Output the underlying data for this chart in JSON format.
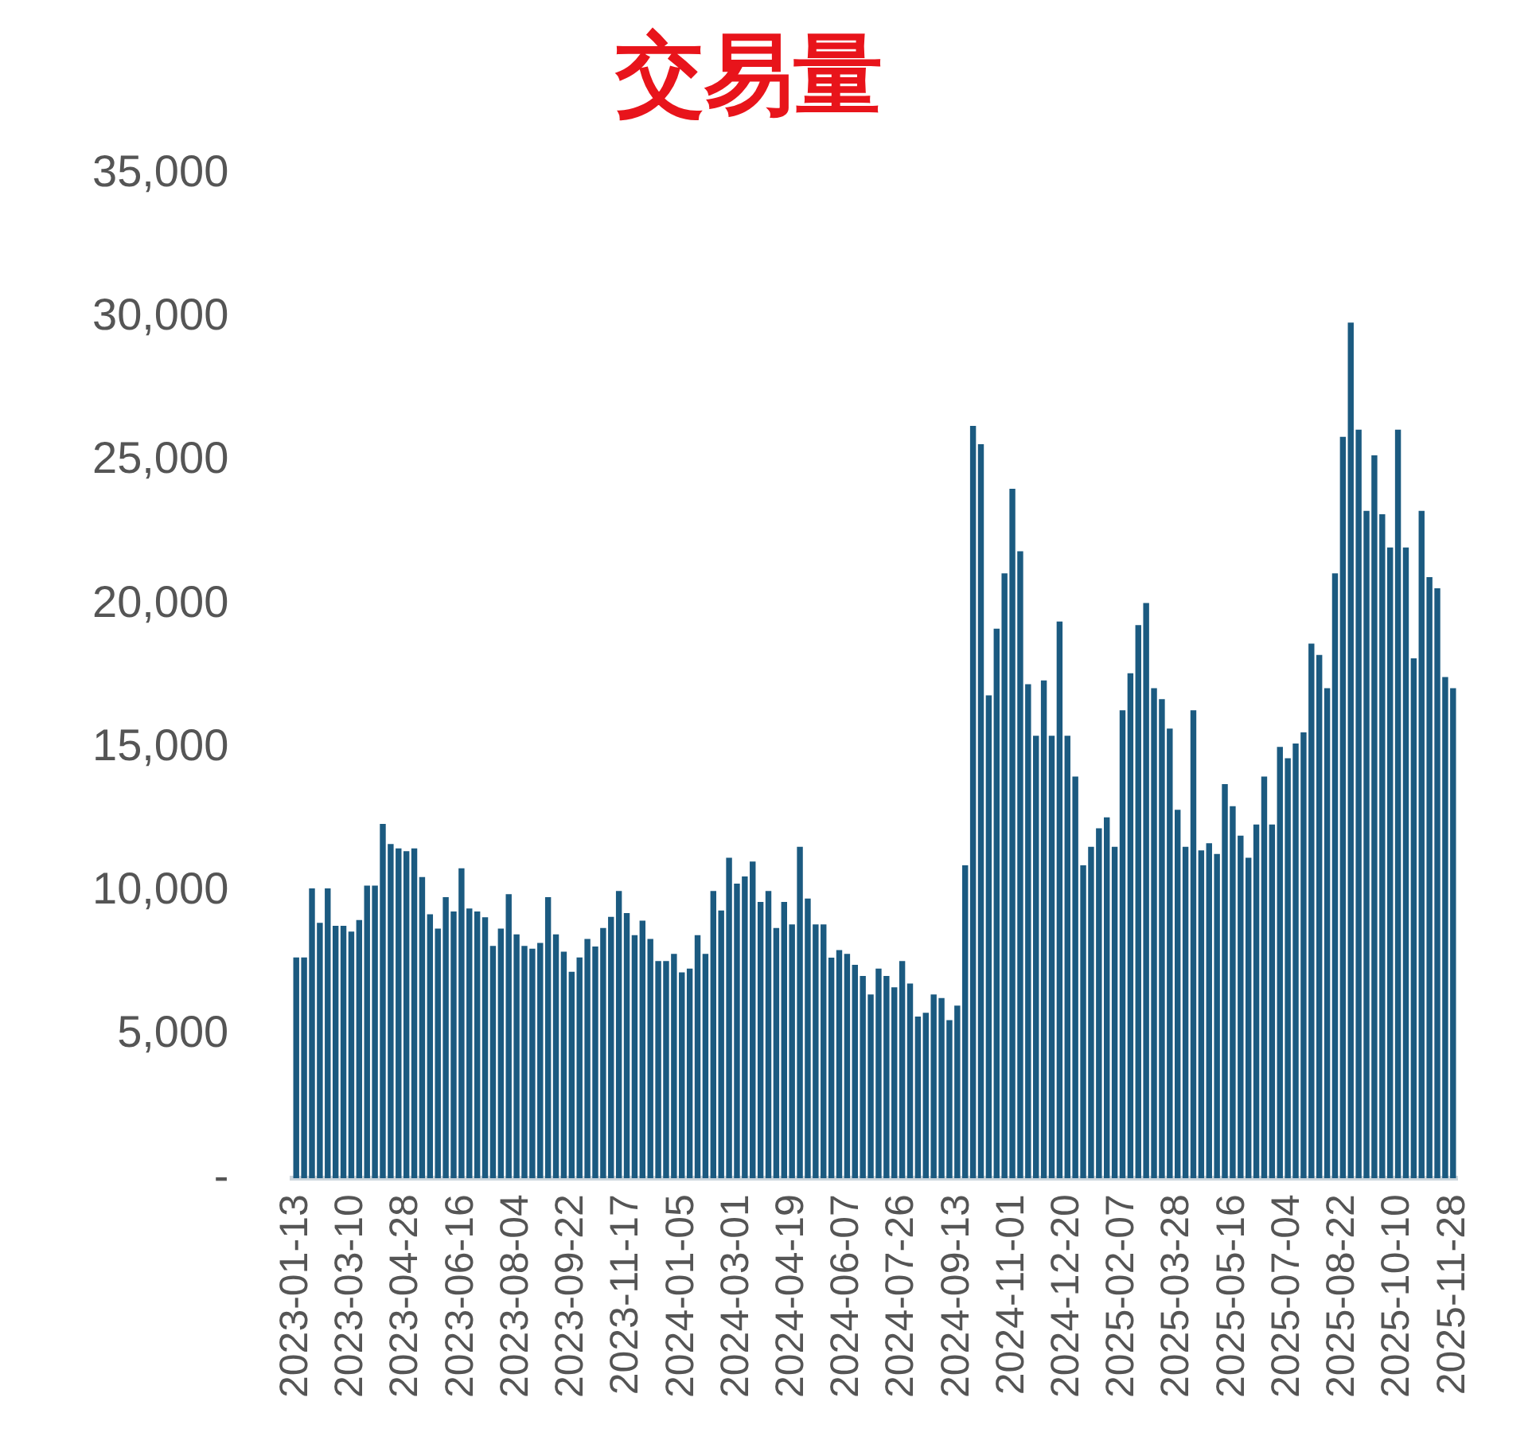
{
  "chart_data": {
    "type": "bar",
    "title": "交易量",
    "categories": [
      "2023-01-13",
      null,
      null,
      null,
      null,
      null,
      null,
      "2023-03-10",
      null,
      null,
      null,
      null,
      null,
      null,
      "2023-04-28",
      null,
      null,
      null,
      null,
      null,
      null,
      "2023-06-16",
      null,
      null,
      null,
      null,
      null,
      null,
      "2023-08-04",
      null,
      null,
      null,
      null,
      null,
      null,
      "2023-09-22",
      null,
      null,
      null,
      null,
      null,
      null,
      "2023-11-17",
      null,
      null,
      null,
      null,
      null,
      null,
      "2024-01-05",
      null,
      null,
      null,
      null,
      null,
      null,
      "2024-03-01",
      null,
      null,
      null,
      null,
      null,
      null,
      "2024-04-19",
      null,
      null,
      null,
      null,
      null,
      null,
      "2024-06-07",
      null,
      null,
      null,
      null,
      null,
      null,
      "2024-07-26",
      null,
      null,
      null,
      null,
      null,
      null,
      "2024-09-13",
      null,
      null,
      null,
      null,
      null,
      null,
      "2024-11-01",
      null,
      null,
      null,
      null,
      null,
      null,
      "2024-12-20",
      null,
      null,
      null,
      null,
      null,
      null,
      "2025-02-07",
      null,
      null,
      null,
      null,
      null,
      null,
      "2025-03-28",
      null,
      null,
      null,
      null,
      null,
      null,
      "2025-05-16",
      null,
      null,
      null,
      null,
      null,
      null,
      "2025-07-04",
      null,
      null,
      null,
      null,
      null,
      null,
      "2025-08-22",
      null,
      null,
      null,
      null,
      null,
      null,
      "2025-10-10",
      null,
      null,
      null,
      null,
      null,
      null,
      "2025-11-28"
    ],
    "values": [
      7700,
      7700,
      10100,
      8900,
      10100,
      8800,
      8800,
      8600,
      9000,
      10200,
      10200,
      12350,
      11650,
      11500,
      11400,
      11500,
      10500,
      9200,
      8700,
      9800,
      9300,
      10800,
      9400,
      9300,
      9100,
      8100,
      8700,
      9900,
      8500,
      8100,
      8000,
      8200,
      9800,
      8500,
      7900,
      7200,
      7700,
      8340,
      8080,
      8720,
      9110,
      10010,
      9240,
      8470,
      8980,
      8340,
      7570,
      7570,
      7820,
      7180,
      7310,
      8470,
      7820,
      10010,
      9330,
      11170,
      10270,
      10520,
      11040,
      9630,
      10010,
      8720,
      9630,
      8850,
      11550,
      9750,
      8850,
      8850,
      7690,
      7950,
      7820,
      7440,
      7050,
      6410,
      7310,
      7050,
      6660,
      7570,
      6790,
      5640,
      5770,
      6410,
      6280,
      5510,
      6020,
      10910,
      26220,
      25580,
      16830,
      19150,
      21080,
      24030,
      21850,
      17220,
      15420,
      17350,
      15420,
      19400,
      15420,
      14000,
      10910,
      11550,
      12200,
      12580,
      11550,
      16310,
      17600,
      19280,
      20050,
      17080,
      16700,
      15670,
      12840,
      11550,
      16310,
      11430,
      11680,
      11300,
      13740,
      12970,
      11940,
      11170,
      12330,
      14000,
      12330,
      15030,
      14640,
      15150,
      15540,
      18630,
      18240,
      17080,
      21080,
      25840,
      29820,
      26090,
      23260,
      25190,
      23140,
      21980,
      26090,
      21980,
      18120,
      23260,
      20950,
      20560,
      17470,
      17080
    ],
    "color": "#1b5a80",
    "ylim": [
      0,
      35000
    ],
    "yticks": [
      {
        "value": 0,
        "label": "-"
      },
      {
        "value": 5000,
        "label": "5,000"
      },
      {
        "value": 10000,
        "label": "10,000"
      },
      {
        "value": 15000,
        "label": "15,000"
      },
      {
        "value": 20000,
        "label": "20,000"
      },
      {
        "value": 25000,
        "label": "25,000"
      },
      {
        "value": 30000,
        "label": "30,000"
      },
      {
        "value": 35000,
        "label": "35,000"
      }
    ],
    "grid": false,
    "legend": false
  }
}
